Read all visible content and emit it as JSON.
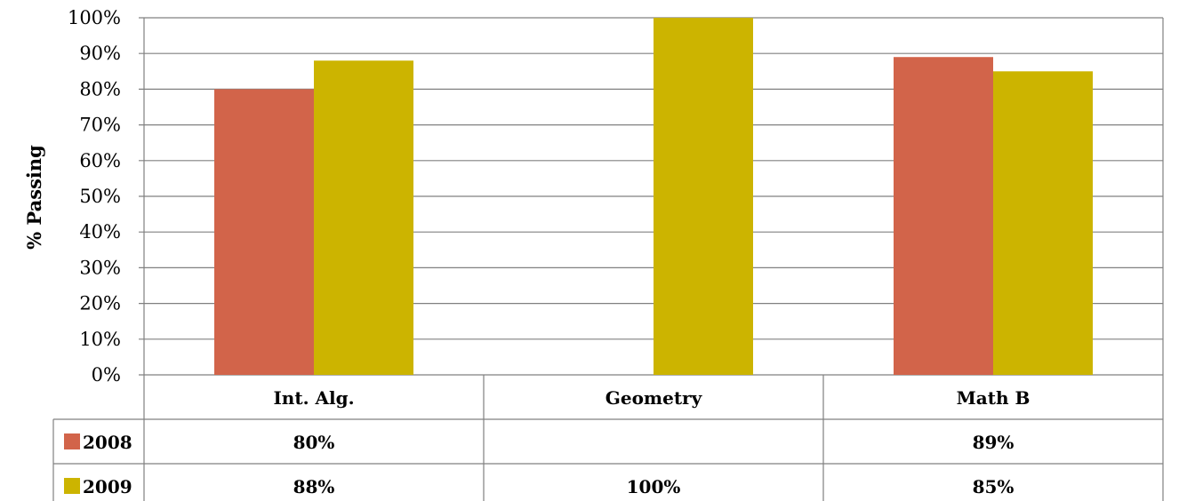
{
  "chart_data": {
    "type": "bar",
    "ylabel": "% Passing",
    "xlabel": "",
    "categories": [
      "Int. Alg.",
      "Geometry",
      "Math B"
    ],
    "series": [
      {
        "name": "2008",
        "color": "#D2644A",
        "values": [
          80,
          null,
          89
        ],
        "labels": [
          "80%",
          "",
          "89%"
        ]
      },
      {
        "name": "2009",
        "color": "#CCB400",
        "values": [
          88,
          100,
          85
        ],
        "labels": [
          "88%",
          "100%",
          "85%"
        ]
      }
    ],
    "ylim": [
      0,
      100
    ],
    "yticks": [
      "0%",
      "10%",
      "20%",
      "30%",
      "40%",
      "50%",
      "60%",
      "70%",
      "80%",
      "90%",
      "100%"
    ],
    "grid": true,
    "legend": "data-table"
  }
}
